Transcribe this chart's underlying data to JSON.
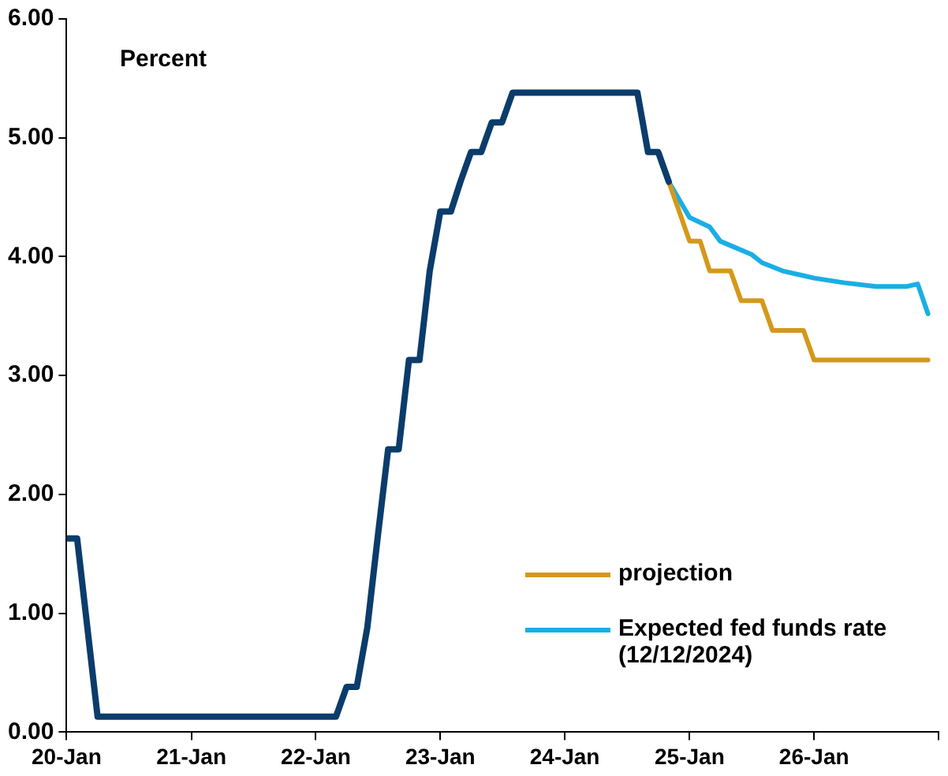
{
  "chart_data": {
    "type": "line",
    "ylabel": "Percent",
    "xlim": [
      "2020-01-01",
      "2027-01-01"
    ],
    "xticks": [
      {
        "value": "2020-01-01",
        "label": "20-Jan"
      },
      {
        "value": "2021-01-01",
        "label": "21-Jan"
      },
      {
        "value": "2022-01-01",
        "label": "22-Jan"
      },
      {
        "value": "2023-01-01",
        "label": "23-Jan"
      },
      {
        "value": "2024-01-01",
        "label": "24-Jan"
      },
      {
        "value": "2025-01-01",
        "label": "25-Jan"
      },
      {
        "value": "2026-01-01",
        "label": "26-Jan"
      },
      {
        "value": "2027-01-01",
        "label": null
      }
    ],
    "ylim": [
      0,
      6
    ],
    "yticks": [
      {
        "value": 0,
        "label": "0.00"
      },
      {
        "value": 1,
        "label": "1.00"
      },
      {
        "value": 2,
        "label": "2.00"
      },
      {
        "value": 3,
        "label": "3.00"
      },
      {
        "value": 4,
        "label": "4.00"
      },
      {
        "value": 5,
        "label": "5.00"
      },
      {
        "value": 6,
        "label": "6.00"
      }
    ],
    "grid": false,
    "legend": "bottom right",
    "marker": "none",
    "line_style": "solid",
    "series": [
      {
        "color": "#0b3c6b",
        "x": [
          "2020-01",
          "2020-02",
          "2020-04",
          "2022-03",
          "2022-04",
          "2022-05",
          "2022-06",
          "2022-07",
          "2022-08",
          "2022-09",
          "2022-10",
          "2022-11",
          "2022-12",
          "2023-01",
          "2023-02",
          "2023-03",
          "2023-04",
          "2023-05",
          "2023-06",
          "2023-07",
          "2023-08",
          "2024-08",
          "2024-09",
          "2024-10",
          "2024-11"
        ],
        "values": [
          1.63,
          1.63,
          0.13,
          0.13,
          0.38,
          0.38,
          0.88,
          1.63,
          2.38,
          2.38,
          3.13,
          3.13,
          3.88,
          4.38,
          4.38,
          4.63,
          4.88,
          4.88,
          5.13,
          5.13,
          5.38,
          5.38,
          4.88,
          4.88,
          4.63
        ]
      },
      {
        "name": "projection",
        "color": "#d4991a",
        "x": [
          "2024-11",
          "2025-01",
          "2025-02",
          "2025-03",
          "2025-05",
          "2025-06",
          "2025-08",
          "2025-09",
          "2025-12",
          "2026-01",
          "2026-12"
        ],
        "values": [
          4.63,
          4.13,
          4.13,
          3.88,
          3.88,
          3.63,
          3.63,
          3.38,
          3.38,
          3.13,
          3.13
        ]
      },
      {
        "name": "Expected fed funds rate (12/12/2024)",
        "color": "#1aaee5",
        "x": [
          "2024-11",
          "2025-01",
          "2025-03",
          "2025-04",
          "2025-07",
          "2025-08",
          "2025-10",
          "2026-01",
          "2026-04",
          "2026-07",
          "2026-10",
          "2026-11",
          "2026-12"
        ],
        "values": [
          4.63,
          4.33,
          4.25,
          4.13,
          4.02,
          3.95,
          3.88,
          3.82,
          3.78,
          3.75,
          3.75,
          3.77,
          3.52
        ]
      }
    ]
  }
}
